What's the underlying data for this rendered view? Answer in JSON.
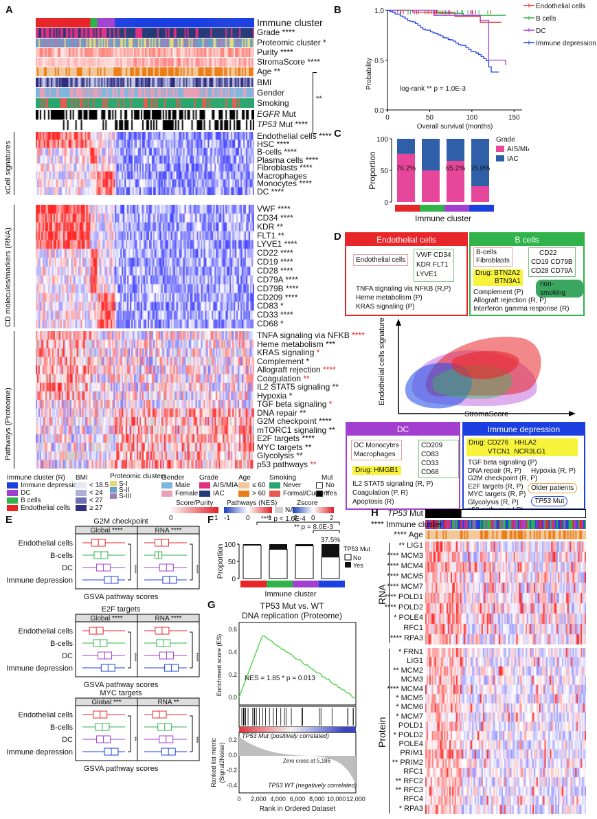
{
  "panels": {
    "A": "A",
    "B": "B",
    "C": "C",
    "D": "D",
    "E": "E",
    "F": "F",
    "G": "G",
    "H": "H"
  },
  "colors": {
    "endo": "#e8262a",
    "bcell": "#2fb34a",
    "dc": "#a23fd0",
    "imdep": "#1b3fe0",
    "high": "#e01f26",
    "low": "#1d3fb8"
  },
  "panelA": {
    "top_rows": [
      {
        "label": "Immune cluster",
        "bold": true
      },
      {
        "label": "Grade ****"
      },
      {
        "label": "Proteomic cluster *"
      },
      {
        "label": "Purity ****"
      },
      {
        "label": "StromaScore ****"
      },
      {
        "label": "Age **"
      },
      {
        "label": "BMI"
      },
      {
        "label": "Gender"
      },
      {
        "label": "Smoking"
      },
      {
        "label": "EGFR Mut",
        "italic": "EGFR"
      },
      {
        "label": "TP53 Mut ****",
        "italic": "TP53"
      }
    ],
    "bracket_star": "**",
    "xcell_title": "xCell signatures",
    "xcell_rows": [
      "Endothelial cells ****",
      "HSC ****",
      "B-cells ****",
      "Plasma cells ****",
      "Fibroblasts ****",
      "Macrophages",
      "Monocytes ****",
      "DC ****"
    ],
    "cd_title": "CD molecules/markers (RNA)",
    "cd_rows": [
      "VWF ****",
      "CD34 ****",
      "KDR **",
      "FLT1 **",
      "LYVE1 ****",
      "CD22 ****",
      "CD19 ****",
      "CD28 ****",
      "CD79A ****",
      "CD79B ****",
      "CD209 ****",
      "CD83 *",
      "CD33 ****",
      "CD68 *"
    ],
    "path_title": "Pathways (Proteome)",
    "path_rows": [
      {
        "name": "TNFA signaling via NFKB",
        "star": "****",
        "red": true
      },
      {
        "name": "Heme metabolism",
        "star": "***",
        "red": false
      },
      {
        "name": "KRAS signaling",
        "star": "*",
        "red": true
      },
      {
        "name": "Complement",
        "star": "*",
        "red": false
      },
      {
        "name": "Allograft rejection",
        "star": "****",
        "red": true
      },
      {
        "name": "Coagulation",
        "star": "**",
        "red": true
      },
      {
        "name": "IL2 STAT5 signaling",
        "star": "**",
        "red": false
      },
      {
        "name": "Hypoxia",
        "star": "*",
        "red": false
      },
      {
        "name": "TGF beta signaling",
        "star": "*",
        "red": true
      },
      {
        "name": "DNA repair",
        "star": "**",
        "red": false
      },
      {
        "name": "G2M checkpoint",
        "star": "****",
        "red": false
      },
      {
        "name": "mTORC1 signaling",
        "star": "**",
        "red": false
      },
      {
        "name": "E2F targets",
        "star": "****",
        "red": false
      },
      {
        "name": "MYC targets",
        "star": "**",
        "red": false
      },
      {
        "name": "Glycolysis",
        "star": "**",
        "red": false
      },
      {
        "name": "p53 pathways",
        "star": "**",
        "red": true
      }
    ],
    "legend": {
      "immune_title": "Immune cluster (R)",
      "immune_items": [
        "Immune depression",
        "DC",
        "B cells",
        "Endothelial cells"
      ],
      "bmi_title": "BMI",
      "bmi_items": [
        "< 18.5",
        "< 24",
        "< 27",
        "≥ 27"
      ],
      "prot_title": "Proteomic clusters",
      "prot_items": [
        "S-I",
        "S-II",
        "S-III"
      ],
      "gender_title": "Gender",
      "gender_items": [
        "Male",
        "Female"
      ],
      "grade_title": "Grade",
      "grade_items": [
        "AIS/MIA",
        "IAC"
      ],
      "age_title": "Age",
      "age_items": [
        "≤ 60",
        "> 60"
      ],
      "smoke_title": "Smoking",
      "smoke_items": [
        "Never",
        "Formal/Current"
      ],
      "mut_title": "Mut",
      "mut_items": [
        "No",
        "Yes"
      ],
      "score_title": "Score/Purity",
      "score_ticks": [
        "0",
        "1"
      ],
      "path_title": "Pathways (NES)",
      "path_ticks": [
        "-1",
        "0",
        "1"
      ],
      "na_label": "NA",
      "z_title": "Zscore",
      "z_ticks": [
        "-2",
        "0",
        "2"
      ]
    }
  },
  "panelB": {
    "ylabel": "Probability",
    "xlabel": "Overall survival (months)",
    "yticks": [
      "0.0",
      "0.5",
      "1.0"
    ],
    "xticks": [
      "0",
      "50",
      "100",
      "150"
    ],
    "legend": [
      "Endothelial cells",
      "B cells",
      "DC",
      "Immune depression"
    ],
    "annotation": "log-rank  ** p = 1.0E-3"
  },
  "panelC": {
    "ylabel": "Proportion",
    "xlabel": "Immune cluster",
    "yticks": [
      "0",
      "50",
      "100"
    ],
    "legend_title": "Grade",
    "legend": [
      "AIS/MIA",
      "IAC"
    ],
    "chart_data": {
      "type": "bar",
      "categories": [
        "Endothelial cells",
        "B cells",
        "DC",
        "Immune depression"
      ],
      "series": [
        {
          "name": "AIS/MIA",
          "values": [
            76.2,
            50,
            65.2,
            25
          ]
        },
        {
          "name": "IAC",
          "values": [
            23.8,
            50,
            34.8,
            75
          ]
        }
      ],
      "labels": [
        "76.2%",
        "",
        "65.2%",
        "75.0%"
      ],
      "ylim": [
        0,
        100
      ]
    }
  },
  "panelD": {
    "endo": {
      "title": "Endothelial cells",
      "cells": "Endothelial cells",
      "markers": [
        "VWF CD34",
        "KDR  FLT1",
        "LYVE1"
      ],
      "paths": [
        "TNFA signaling via NFKB (R,P)",
        "Heme metabolism (P)",
        "KRAS signaling (P)"
      ]
    },
    "bcell": {
      "title": "B cells",
      "cells": [
        "B-cells",
        "Fibroblasts"
      ],
      "markers": [
        "CD22",
        "CD19 CD79B",
        "CD28  CD79A"
      ],
      "drug": [
        "Drug: BTN2A2",
        "BTN3A1"
      ],
      "tag": "non-smoking",
      "paths": [
        "Complement (P)",
        "Allograft rejection (R, P)",
        "Interferon gamma response (R)"
      ]
    },
    "scatter": {
      "ylabel": "Endothelial cells signature",
      "xlabel": "StromaScore"
    },
    "dc": {
      "title": "DC",
      "cells": [
        "DC   Monocytes",
        "Macrophages"
      ],
      "markers": [
        "CD209 CD83",
        "CD33   CD68"
      ],
      "drug": "Drug: HMGB1",
      "paths": [
        "IL2 STAT5 signaling (R, P)",
        "Coagulation (P, R)",
        "Apoptosis (R)"
      ]
    },
    "imdep": {
      "title": "Immune depression",
      "drug": [
        "Drug: CD276",
        "HHLA2",
        "VTCN1",
        "NCR3LG1"
      ],
      "paths": [
        "TGF beta signaling (P)",
        "DNA repair (R, P)",
        "G2M checkpoint (R, P)",
        "E2F targets (R, P)",
        "MYC targets (R, P)",
        "Glycolysis (R, P)",
        "p53 pathways ( P)"
      ],
      "hypoxia": "Hypoxia (R, P)",
      "older": "Older patients",
      "tp53": "TP53",
      "mut": "Mut"
    }
  },
  "panelE": {
    "groups": [
      "Endothelial cells",
      "B-cells",
      "DC",
      "Immune depression"
    ],
    "xlabel": "GSVA pathway scores",
    "plots": [
      {
        "title": "G2M checkpoint",
        "global": "Global ****",
        "rna": "RNA ****",
        "bracket_g": "****",
        "bracket_r": "****"
      },
      {
        "title": "E2F targets",
        "global": "Global ****",
        "rna": "RNA ****",
        "bracket_g": "****",
        "bracket_r": "****"
      },
      {
        "title": "MYC targets",
        "global": "Global ***",
        "rna": "RNA **",
        "bracket_g": "**",
        "bracket_r": "***"
      }
    ]
  },
  "panelF": {
    "ylabel": "Proportion",
    "xlabel": "Immune cluster",
    "yticks": [
      "0",
      "50",
      "100"
    ],
    "sig1": "**** p < 1.0E-4",
    "sig2": "** p = 8.0E-3",
    "legend_title": "TP53 Mut",
    "legend": [
      "No",
      "Yes"
    ],
    "chart_data": {
      "type": "bar",
      "categories": [
        "Endothelial cells",
        "B cells",
        "DC",
        "Immune depression"
      ],
      "series": [
        {
          "name": "No",
          "values": [
            97,
            85,
            95,
            62.5
          ]
        },
        {
          "name": "Yes",
          "values": [
            3,
            15,
            5,
            37.5
          ]
        }
      ],
      "labels": [
        "",
        "",
        "",
        "37.5%"
      ],
      "ylim": [
        0,
        100
      ]
    }
  },
  "panelG": {
    "title1": "TP53 Mut vs. WT",
    "title2": "DNA replication (Proteome)",
    "ylabel_top": "Enrichment score (ES)",
    "yticks_top": [
      "0.6",
      "0.4",
      "0.2",
      "0.0"
    ],
    "nes": "NES = 1.85   * p = 0.013",
    "ylabel_bot1": "Ranked list metric",
    "ylabel_bot2": "(Signal2Noise)",
    "yticks_bot": [
      "0.2",
      "0.0",
      "-0.2",
      "-0.4"
    ],
    "pos_label": "TP53 Mut (positively correlated)",
    "neg_label": "TP53 WT (negatively correlated)",
    "zero": "Zero cross at 5,186",
    "xlabel": "Rank in Ordered Dataset",
    "xticks": [
      "0",
      "2,000",
      "4,000",
      "6,000",
      "8,000",
      "10,000",
      "12,000"
    ]
  },
  "panelH": {
    "top": [
      "TP53 Mut",
      "**** Immune cluster",
      "**** Age"
    ],
    "rna_title": "RNA",
    "rna_rows": [
      "** LIG1",
      "**** MCM3",
      "**** MCM4",
      "**** MCM5",
      "**** MCM7",
      "**** POLD1",
      "**** POLD2",
      "* POLE4",
      "RFC1",
      "**** RPA3"
    ],
    "prot_title": "Protein",
    "prot_rows": [
      "* FRN1",
      "LIG1",
      "** MCM2",
      "MCM3",
      "**** MCM4",
      "* MCM5",
      "* MCM6",
      "* MCM7",
      "POLD1",
      "* POLD2",
      "POLE4",
      "PRIM1",
      "** PRIM2",
      "RFC1",
      "** RFC2",
      "** RFC3",
      "RFC4",
      "* RPA3"
    ]
  }
}
